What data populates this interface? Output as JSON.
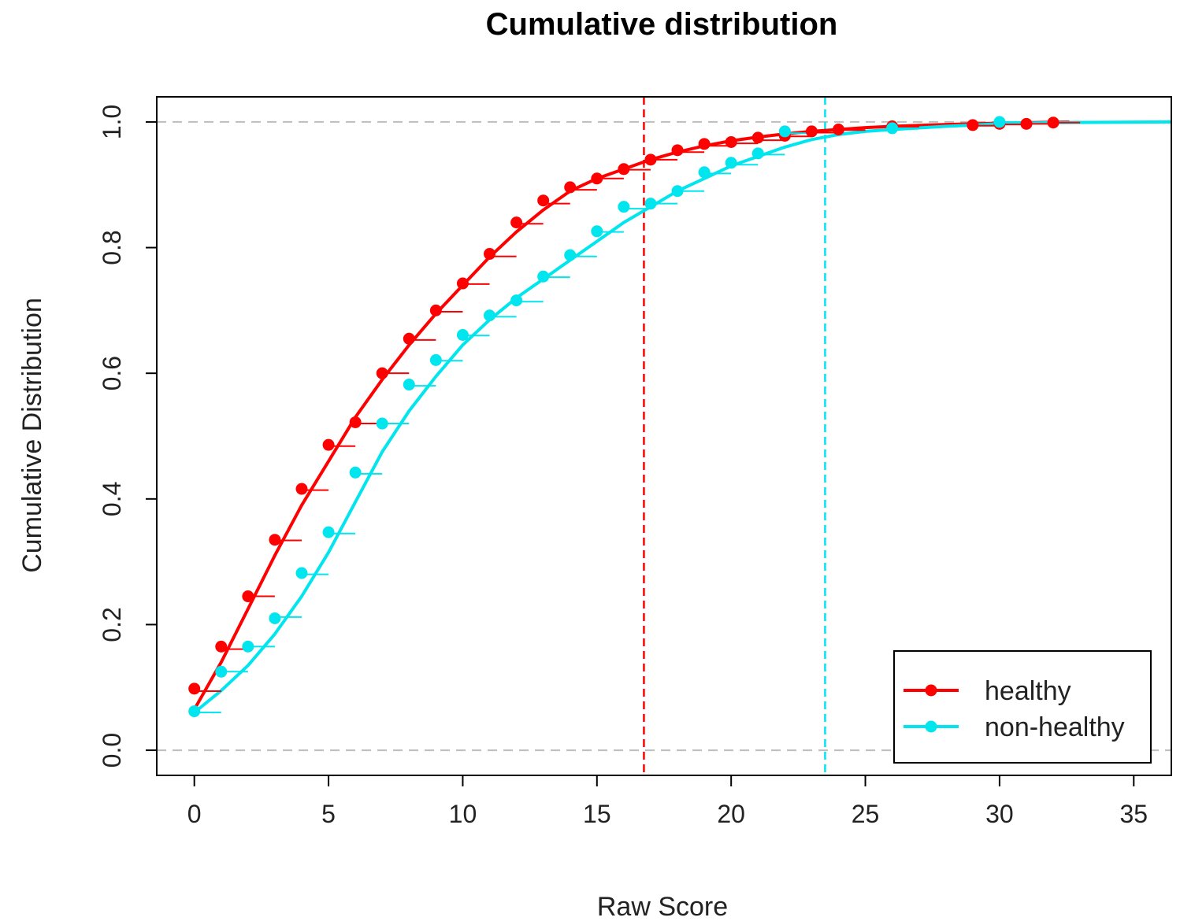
{
  "chart_data": {
    "type": "line",
    "title": "Cumulative distribution",
    "xlabel": "Raw Score",
    "ylabel": "Cumulative Distribution",
    "xlim": [
      -1.4,
      36.4
    ],
    "ylim": [
      -0.04,
      1.04
    ],
    "x_ticks": [
      0,
      5,
      10,
      15,
      20,
      25,
      30,
      35
    ],
    "y_ticks": [
      0.0,
      0.2,
      0.4,
      0.6,
      0.8,
      1.0
    ],
    "x_tick_labels": [
      "0",
      "5",
      "10",
      "15",
      "20",
      "25",
      "30",
      "35"
    ],
    "y_tick_labels": [
      "0.0",
      "0.2",
      "0.4",
      "0.6",
      "0.8",
      "1.0"
    ],
    "horizontal_reference_lines": [
      0.0,
      1.0
    ],
    "vertical_reference_lines": [
      {
        "x": 16.75,
        "color": "#ff0000"
      },
      {
        "x": 23.5,
        "color": "#00e5ee"
      }
    ],
    "legend_position": "bottom-right",
    "series": [
      {
        "name": "healthy",
        "color": "#ff0000",
        "points_x": [
          0,
          1,
          2,
          3,
          4,
          5,
          6,
          7,
          8,
          9,
          10,
          11,
          12,
          13,
          14,
          15,
          16,
          17,
          18,
          19,
          20,
          21,
          22,
          23,
          24,
          26,
          29,
          30,
          31,
          32
        ],
        "points_y": [
          0.098,
          0.165,
          0.245,
          0.335,
          0.416,
          0.486,
          0.522,
          0.6,
          0.655,
          0.7,
          0.743,
          0.79,
          0.84,
          0.875,
          0.896,
          0.91,
          0.925,
          0.94,
          0.955,
          0.965,
          0.968,
          0.975,
          0.978,
          0.985,
          0.988,
          0.993,
          0.995,
          0.997,
          0.997,
          0.999
        ],
        "fit_x": [
          0,
          1,
          2,
          3,
          4,
          5,
          6,
          7,
          8,
          9,
          10,
          11,
          12,
          13,
          14,
          15,
          16,
          17,
          18,
          19,
          20,
          21,
          22,
          23,
          24,
          25,
          26,
          28,
          30,
          32.6
        ],
        "fit_y": [
          0.065,
          0.14,
          0.225,
          0.31,
          0.39,
          0.46,
          0.53,
          0.59,
          0.645,
          0.695,
          0.74,
          0.785,
          0.825,
          0.86,
          0.89,
          0.91,
          0.925,
          0.94,
          0.952,
          0.962,
          0.97,
          0.976,
          0.981,
          0.985,
          0.988,
          0.991,
          0.993,
          0.996,
          0.998,
          1.0
        ],
        "steps_x": [
          0,
          1,
          2,
          3,
          4,
          5,
          6,
          7,
          8,
          9,
          10,
          11,
          12,
          13,
          14,
          15,
          16,
          17,
          18,
          19,
          20,
          21,
          22,
          23,
          24,
          26,
          29,
          30,
          31,
          32
        ],
        "steps_y": [
          0.094,
          0.161,
          0.245,
          0.334,
          0.414,
          0.484,
          0.52,
          0.6,
          0.653,
          0.698,
          0.742,
          0.786,
          0.838,
          0.87,
          0.892,
          0.91,
          0.924,
          0.94,
          0.952,
          0.962,
          0.966,
          0.971,
          0.977,
          0.983,
          0.987,
          0.992,
          0.994,
          0.996,
          0.997,
          0.999
        ]
      },
      {
        "name": "non-healthy",
        "color": "#00e5ee",
        "points_x": [
          0,
          1,
          2,
          3,
          4,
          5,
          6,
          7,
          8,
          9,
          10,
          11,
          12,
          13,
          14,
          15,
          16,
          17,
          18,
          19,
          20,
          21,
          22,
          26,
          30
        ],
        "points_y": [
          0.062,
          0.125,
          0.165,
          0.21,
          0.282,
          0.347,
          0.442,
          0.52,
          0.582,
          0.621,
          0.661,
          0.692,
          0.716,
          0.754,
          0.788,
          0.826,
          0.865,
          0.87,
          0.89,
          0.92,
          0.935,
          0.95,
          0.985,
          0.99,
          1.0
        ],
        "fit_x": [
          0,
          1,
          2,
          3,
          4,
          5,
          6,
          7,
          8,
          9,
          10,
          11,
          12,
          13,
          14,
          15,
          16,
          17,
          18,
          19,
          20,
          21,
          22,
          23,
          24,
          25,
          26,
          28,
          30,
          32,
          36.4
        ],
        "fit_y": [
          0.06,
          0.095,
          0.135,
          0.185,
          0.245,
          0.315,
          0.395,
          0.475,
          0.54,
          0.595,
          0.645,
          0.685,
          0.72,
          0.75,
          0.78,
          0.81,
          0.84,
          0.865,
          0.89,
          0.91,
          0.93,
          0.945,
          0.96,
          0.972,
          0.98,
          0.985,
          0.988,
          0.993,
          0.997,
          0.999,
          1.0
        ],
        "steps_x": [
          0,
          1,
          2,
          3,
          4,
          5,
          6,
          7,
          8,
          9,
          10,
          11,
          12,
          13,
          14,
          15,
          16,
          17,
          18,
          19,
          20,
          21,
          22,
          26,
          30
        ],
        "steps_y": [
          0.06,
          0.125,
          0.165,
          0.212,
          0.28,
          0.345,
          0.44,
          0.52,
          0.58,
          0.62,
          0.66,
          0.69,
          0.714,
          0.753,
          0.786,
          0.825,
          0.862,
          0.87,
          0.89,
          0.918,
          0.932,
          0.948,
          0.982,
          0.99,
          1.0
        ]
      }
    ]
  }
}
